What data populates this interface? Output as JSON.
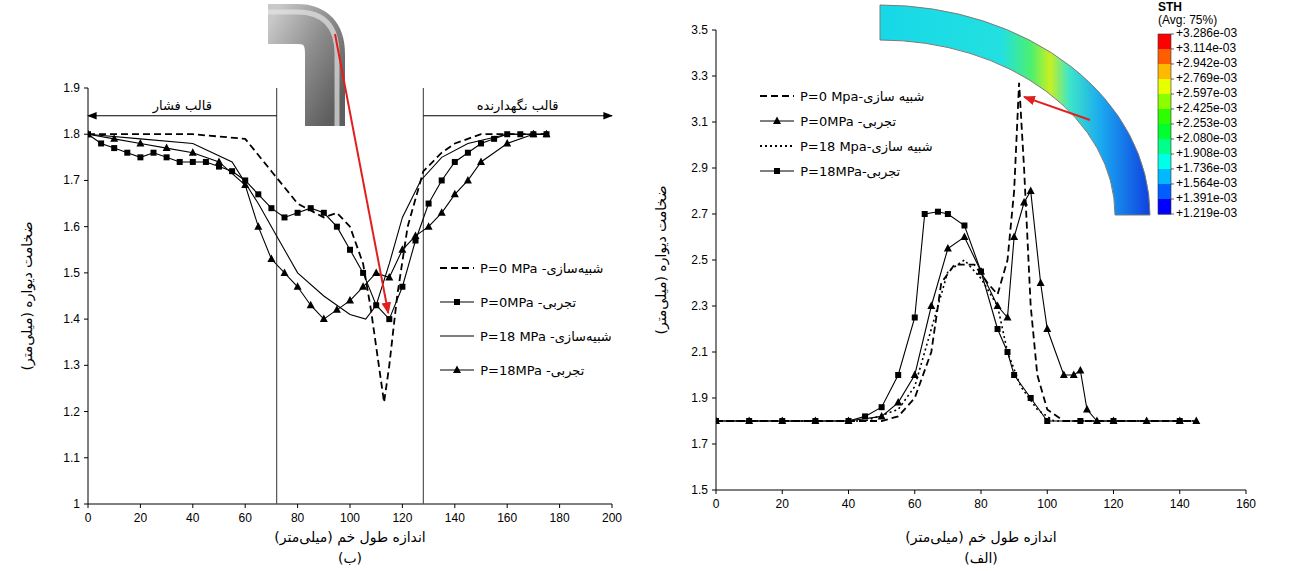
{
  "chart_data": [
    {
      "type": "line",
      "title": "(ب)",
      "x_label": "اندازه طول خم (میلی‌متر)",
      "y_label": "ضخامت دیواره (میلی‌متر)",
      "xlim": [
        0,
        200
      ],
      "ylim": [
        1,
        1.9
      ],
      "xticks": [
        0,
        20,
        40,
        60,
        80,
        100,
        120,
        140,
        160,
        180,
        200
      ],
      "yticks": [
        1,
        1.1,
        1.2,
        1.3,
        1.4,
        1.5,
        1.6,
        1.7,
        1.8,
        1.9
      ],
      "grid": false,
      "legend": "right",
      "annotations": [
        {
          "text": "قالب فشار",
          "x_from": 0,
          "x_to": 72,
          "y": 1.84
        },
        {
          "text": "قالب نگهدارنده",
          "x_from": 128,
          "x_to": 200,
          "y": 1.84
        }
      ],
      "series": [
        {
          "name": "شبیه‌سازی- P=0 MPa",
          "color": "#000000",
          "line_style": "dashed",
          "marker": "none",
          "x": [
            0,
            20,
            40,
            60,
            70,
            80,
            90,
            95,
            100,
            105,
            108,
            111,
            113,
            115,
            118,
            122,
            128,
            135,
            140,
            150,
            160,
            175
          ],
          "values": [
            1.8,
            1.8,
            1.8,
            1.79,
            1.72,
            1.65,
            1.62,
            1.63,
            1.6,
            1.52,
            1.42,
            1.3,
            1.22,
            1.3,
            1.45,
            1.6,
            1.72,
            1.76,
            1.78,
            1.8,
            1.8,
            1.8
          ]
        },
        {
          "name": "تجربی- P=0MPa",
          "color": "#000000",
          "line_style": "solid",
          "marker": "square",
          "x": [
            0,
            5,
            10,
            15,
            20,
            25,
            30,
            35,
            40,
            45,
            50,
            55,
            60,
            65,
            70,
            75,
            80,
            85,
            90,
            95,
            100,
            105,
            110,
            115,
            120,
            125,
            130,
            135,
            140,
            145,
            150,
            155,
            160,
            165,
            170,
            175
          ],
          "values": [
            1.8,
            1.78,
            1.77,
            1.76,
            1.75,
            1.76,
            1.75,
            1.74,
            1.74,
            1.74,
            1.73,
            1.72,
            1.7,
            1.67,
            1.64,
            1.62,
            1.63,
            1.64,
            1.63,
            1.6,
            1.55,
            1.5,
            1.43,
            1.4,
            1.47,
            1.57,
            1.65,
            1.7,
            1.74,
            1.76,
            1.78,
            1.79,
            1.8,
            1.8,
            1.8,
            1.8
          ]
        },
        {
          "name": "شبیه‌سازی- P=18 MPa",
          "color": "#000000",
          "line_style": "solid",
          "marker": "none",
          "x": [
            0,
            20,
            40,
            55,
            65,
            72,
            80,
            90,
            100,
            106,
            110,
            115,
            120,
            127,
            135,
            145,
            160,
            175
          ],
          "values": [
            1.8,
            1.79,
            1.78,
            1.74,
            1.65,
            1.58,
            1.5,
            1.45,
            1.41,
            1.4,
            1.43,
            1.52,
            1.62,
            1.7,
            1.75,
            1.78,
            1.8,
            1.8
          ]
        },
        {
          "name": "تجربی- P=18MPa",
          "color": "#000000",
          "line_style": "solid",
          "marker": "triangle",
          "x": [
            0,
            10,
            20,
            30,
            40,
            50,
            60,
            65,
            70,
            75,
            80,
            85,
            90,
            95,
            100,
            105,
            110,
            115,
            120,
            125,
            130,
            135,
            140,
            145,
            150,
            160,
            170,
            175
          ],
          "values": [
            1.8,
            1.79,
            1.78,
            1.77,
            1.76,
            1.74,
            1.69,
            1.6,
            1.53,
            1.5,
            1.47,
            1.43,
            1.4,
            1.42,
            1.44,
            1.47,
            1.5,
            1.49,
            1.55,
            1.58,
            1.6,
            1.63,
            1.67,
            1.7,
            1.74,
            1.78,
            1.8,
            1.8
          ]
        }
      ]
    },
    {
      "type": "line",
      "title": "(الف)",
      "x_label": "اندازه طول خم (میلی‌متر)",
      "y_label": "ضخامت دیواره (میلی‌متر)",
      "xlim": [
        0,
        160
      ],
      "ylim": [
        1.5,
        3.5
      ],
      "xticks": [
        0,
        20,
        40,
        60,
        80,
        100,
        120,
        140,
        160
      ],
      "yticks": [
        1.5,
        1.7,
        1.9,
        2.1,
        2.3,
        2.5,
        2.7,
        2.9,
        3.1,
        3.3,
        3.5
      ],
      "grid": false,
      "legend": "top-left",
      "colorbar": {
        "title": "STH",
        "subtitle": "(Avg: 75%)",
        "range": [
          0.001219,
          0.003286
        ],
        "ticks": [
          {
            "value": 0.003286,
            "label": "+3.286e-03"
          },
          {
            "value": 0.003114,
            "label": "+3.114e-03"
          },
          {
            "value": 0.002942,
            "label": "+2.942e-03"
          },
          {
            "value": 0.002769,
            "label": "+2.769e-03"
          },
          {
            "value": 0.002597,
            "label": "+2.597e-03"
          },
          {
            "value": 0.002425,
            "label": "+2.425e-03"
          },
          {
            "value": 0.002253,
            "label": "+2.253e-03"
          },
          {
            "value": 0.00208,
            "label": "+2.080e-03"
          },
          {
            "value": 0.001908,
            "label": "+1.908e-03"
          },
          {
            "value": 0.001736,
            "label": "+1.736e-03"
          },
          {
            "value": 0.001564,
            "label": "+1.564e-03"
          },
          {
            "value": 0.001391,
            "label": "+1.391e-03"
          },
          {
            "value": 0.001219,
            "label": "+1.219e-03"
          }
        ],
        "colors": [
          "#ff0000",
          "#ff5d00",
          "#ffb900",
          "#e8ff00",
          "#8bff00",
          "#2eff00",
          "#00ff2e",
          "#00ff8b",
          "#00ffe8",
          "#00b9ff",
          "#005dff",
          "#0000ff"
        ]
      },
      "series": [
        {
          "name": "شبیه سازی-P=0 Mpa",
          "color": "#000000",
          "line_style": "dashed",
          "marker": "none",
          "x": [
            0,
            40,
            50,
            55,
            60,
            65,
            68,
            72,
            78,
            82,
            85,
            88,
            90,
            91.5,
            93,
            95,
            97,
            100,
            105,
            145
          ],
          "values": [
            1.8,
            1.8,
            1.8,
            1.82,
            1.9,
            2.1,
            2.4,
            2.48,
            2.48,
            2.4,
            2.35,
            2.5,
            2.8,
            3.27,
            2.9,
            2.3,
            2.0,
            1.85,
            1.8,
            1.8
          ]
        },
        {
          "name": "تجربی- P=0MPa",
          "color": "#000000",
          "line_style": "solid",
          "marker": "triangle",
          "x": [
            0,
            10,
            20,
            30,
            40,
            50,
            55,
            60,
            65,
            70,
            75,
            80,
            85,
            88,
            90,
            93,
            95,
            98,
            100,
            105,
            108,
            110,
            112,
            115,
            120,
            130,
            140,
            145
          ],
          "values": [
            1.8,
            1.8,
            1.8,
            1.8,
            1.8,
            1.82,
            1.88,
            2.0,
            2.3,
            2.55,
            2.6,
            2.45,
            2.3,
            2.25,
            2.6,
            2.75,
            2.8,
            2.4,
            2.2,
            2.0,
            2.0,
            2.02,
            1.85,
            1.8,
            1.8,
            1.8,
            1.8,
            1.8
          ]
        },
        {
          "name": "شبیه سازی-P=18 Mpa",
          "color": "#000000",
          "line_style": "dotted",
          "marker": "none",
          "x": [
            0,
            45,
            55,
            60,
            65,
            70,
            75,
            80,
            85,
            88,
            92,
            97,
            102,
            145
          ],
          "values": [
            1.8,
            1.8,
            1.85,
            1.95,
            2.2,
            2.45,
            2.5,
            2.42,
            2.3,
            2.1,
            1.95,
            1.85,
            1.8,
            1.8
          ]
        },
        {
          "name": "تجربی-P=18MPa",
          "color": "#000000",
          "line_style": "solid",
          "marker": "square",
          "x": [
            0,
            10,
            20,
            30,
            40,
            45,
            50,
            55,
            60,
            63,
            67,
            70,
            75,
            80,
            85,
            88,
            90,
            95,
            100,
            110,
            120,
            140
          ],
          "values": [
            1.8,
            1.8,
            1.8,
            1.8,
            1.8,
            1.82,
            1.86,
            2.0,
            2.25,
            2.7,
            2.71,
            2.7,
            2.65,
            2.45,
            2.2,
            2.1,
            2.0,
            1.9,
            1.8,
            1.8,
            1.8,
            1.8
          ]
        }
      ]
    }
  ]
}
